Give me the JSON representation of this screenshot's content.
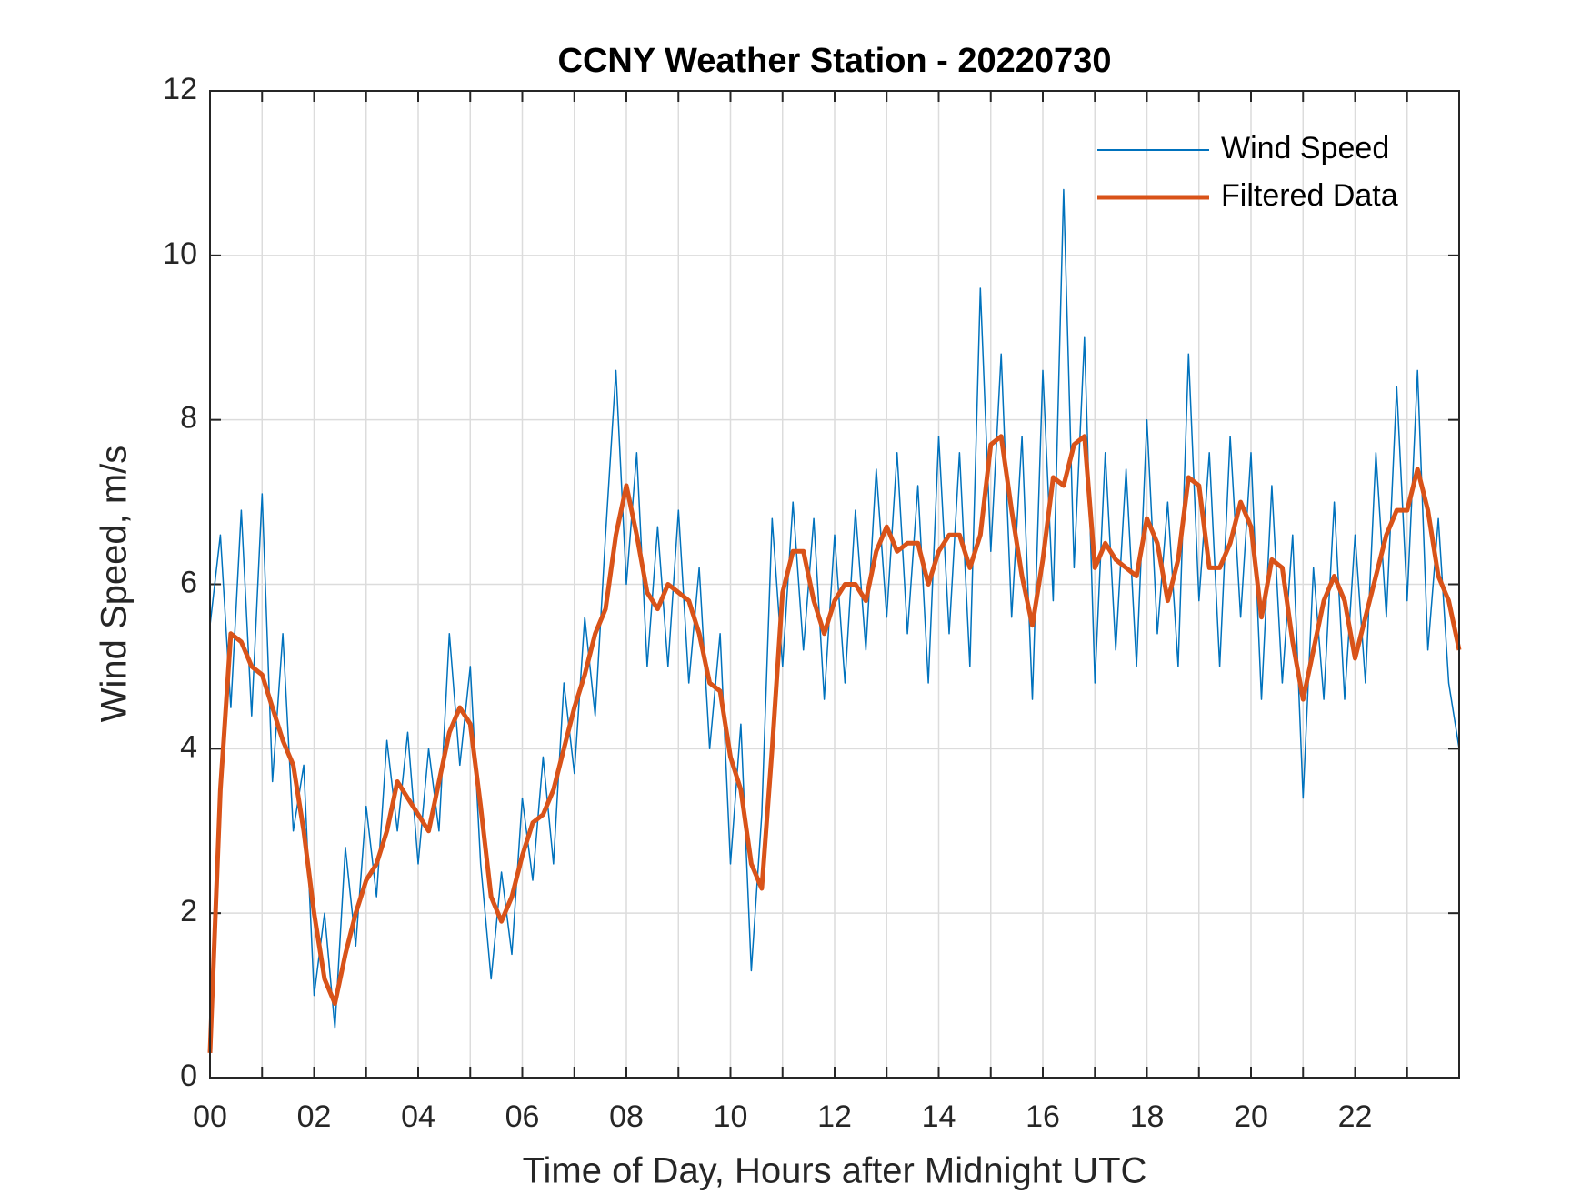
{
  "chart_data": {
    "type": "line",
    "title": "CCNY Weather Station - 20220730",
    "xlabel": "Time of Day, Hours after Midnight UTC",
    "ylabel": "Wind Speed, m/s",
    "x": [
      0,
      0.2,
      0.4,
      0.6,
      0.8,
      1,
      1.2,
      1.4,
      1.6,
      1.8,
      2,
      2.2,
      2.4,
      2.6,
      2.8,
      3,
      3.2,
      3.4,
      3.6,
      3.8,
      4,
      4.2,
      4.4,
      4.6,
      4.8,
      5,
      5.2,
      5.4,
      5.6,
      5.8,
      6,
      6.2,
      6.4,
      6.6,
      6.8,
      7,
      7.2,
      7.4,
      7.6,
      7.8,
      8,
      8.2,
      8.4,
      8.6,
      8.8,
      9,
      9.2,
      9.4,
      9.6,
      9.8,
      10,
      10.2,
      10.4,
      10.6,
      10.8,
      11,
      11.2,
      11.4,
      11.6,
      11.8,
      12,
      12.2,
      12.4,
      12.6,
      12.8,
      13,
      13.2,
      13.4,
      13.6,
      13.8,
      14,
      14.2,
      14.4,
      14.6,
      14.8,
      15,
      15.2,
      15.4,
      15.6,
      15.8,
      16,
      16.2,
      16.4,
      16.6,
      16.8,
      17,
      17.2,
      17.4,
      17.6,
      17.8,
      18,
      18.2,
      18.4,
      18.6,
      18.8,
      19,
      19.2,
      19.4,
      19.6,
      19.8,
      20,
      20.2,
      20.4,
      20.6,
      20.8,
      21,
      21.2,
      21.4,
      21.6,
      21.8,
      22,
      22.2,
      22.4,
      22.6,
      22.8,
      23,
      23.2,
      23.4,
      23.6,
      23.8,
      24
    ],
    "series": [
      {
        "name": "Wind Speed",
        "color": "#0072BD",
        "values": [
          5.5,
          6.6,
          4.5,
          6.9,
          4.4,
          7.1,
          3.6,
          5.4,
          3.0,
          3.8,
          1.0,
          2.0,
          0.6,
          2.8,
          1.6,
          3.3,
          2.2,
          4.1,
          3.0,
          4.2,
          2.6,
          4.0,
          3.0,
          5.4,
          3.8,
          5.0,
          2.6,
          1.2,
          2.5,
          1.5,
          3.4,
          2.4,
          3.9,
          2.6,
          4.8,
          3.7,
          5.6,
          4.4,
          6.6,
          8.6,
          6.0,
          7.6,
          5.0,
          6.7,
          5.0,
          6.9,
          4.8,
          6.2,
          4.0,
          5.4,
          2.6,
          4.3,
          1.3,
          3.2,
          6.8,
          5.0,
          7.0,
          5.2,
          6.8,
          4.6,
          6.6,
          4.8,
          6.9,
          5.2,
          7.4,
          5.6,
          7.6,
          5.4,
          7.2,
          4.8,
          7.8,
          5.4,
          7.6,
          5.0,
          9.6,
          6.4,
          8.8,
          5.6,
          7.8,
          4.6,
          8.6,
          5.8,
          10.8,
          6.2,
          9.0,
          4.8,
          7.6,
          5.2,
          7.4,
          5.0,
          8.0,
          5.4,
          7.0,
          5.0,
          8.8,
          5.8,
          7.6,
          5.0,
          7.8,
          5.6,
          7.6,
          4.6,
          7.2,
          4.8,
          6.6,
          3.4,
          6.2,
          4.6,
          7.0,
          4.6,
          6.6,
          4.8,
          7.6,
          5.6,
          8.4,
          5.8,
          8.6,
          5.2,
          6.8,
          4.8,
          4.0
        ]
      },
      {
        "name": "Filtered Data",
        "color": "#D95319",
        "values": [
          0.3,
          3.5,
          5.4,
          5.3,
          5.0,
          4.9,
          4.5,
          4.1,
          3.8,
          3.0,
          2.0,
          1.2,
          0.9,
          1.5,
          2.0,
          2.4,
          2.6,
          3.0,
          3.6,
          3.4,
          3.2,
          3.0,
          3.6,
          4.2,
          4.5,
          4.3,
          3.3,
          2.2,
          1.9,
          2.2,
          2.7,
          3.1,
          3.2,
          3.5,
          4.0,
          4.5,
          4.9,
          5.4,
          5.7,
          6.6,
          7.2,
          6.6,
          5.9,
          5.7,
          6.0,
          5.9,
          5.8,
          5.4,
          4.8,
          4.7,
          3.9,
          3.5,
          2.6,
          2.3,
          4.0,
          5.9,
          6.4,
          6.4,
          5.8,
          5.4,
          5.8,
          6.0,
          6.0,
          5.8,
          6.4,
          6.7,
          6.4,
          6.5,
          6.5,
          6.0,
          6.4,
          6.6,
          6.6,
          6.2,
          6.6,
          7.7,
          7.8,
          6.9,
          6.1,
          5.5,
          6.3,
          7.3,
          7.2,
          7.7,
          7.8,
          6.2,
          6.5,
          6.3,
          6.2,
          6.1,
          6.8,
          6.5,
          5.8,
          6.3,
          7.3,
          7.2,
          6.2,
          6.2,
          6.5,
          7.0,
          6.7,
          5.6,
          6.3,
          6.2,
          5.3,
          4.6,
          5.2,
          5.8,
          6.1,
          5.8,
          5.1,
          5.6,
          6.1,
          6.6,
          6.9,
          6.9,
          7.4,
          6.9,
          6.1,
          5.8,
          5.2
        ]
      }
    ],
    "xlim": [
      0,
      24
    ],
    "xticks": [
      {
        "value": 0,
        "label": "00"
      },
      {
        "value": 2,
        "label": "02"
      },
      {
        "value": 4,
        "label": "04"
      },
      {
        "value": 6,
        "label": "06"
      },
      {
        "value": 8,
        "label": "08"
      },
      {
        "value": 10,
        "label": "10"
      },
      {
        "value": 12,
        "label": "12"
      },
      {
        "value": 14,
        "label": "14"
      },
      {
        "value": 16,
        "label": "16"
      },
      {
        "value": 18,
        "label": "18"
      },
      {
        "value": 20,
        "label": "20"
      },
      {
        "value": 22,
        "label": "22"
      }
    ],
    "xminorticks": [
      1,
      3,
      5,
      7,
      9,
      11,
      13,
      15,
      17,
      19,
      21,
      23
    ],
    "ylim": [
      0,
      12
    ],
    "yticks": [
      0,
      2,
      4,
      6,
      8,
      10,
      12
    ],
    "grid": true,
    "legend": "upper right"
  }
}
